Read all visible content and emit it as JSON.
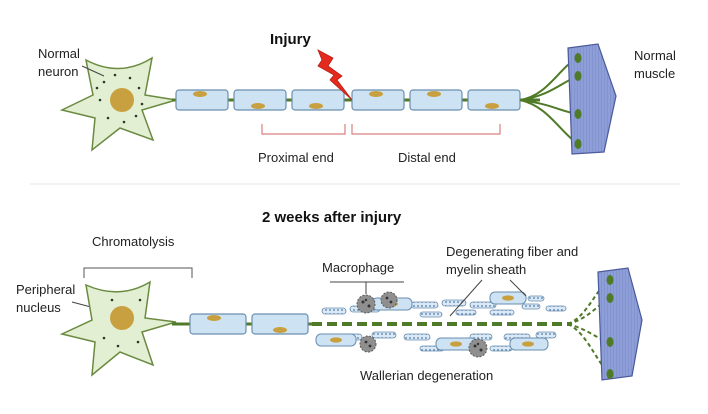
{
  "diagram": {
    "top_panel": {
      "labels": {
        "neuron_line1": "Normal",
        "neuron_line2": "neuron",
        "injury": "Injury",
        "proximal": "Proximal end",
        "distal": "Distal end",
        "muscle_line1": "Normal",
        "muscle_line2": "muscle"
      }
    },
    "bottom_panel": {
      "labels": {
        "title": "2  weeks after injury",
        "chromatolysis": "Chromatolysis",
        "peripheral_line1": "Peripheral",
        "peripheral_line2": "nucleus",
        "macrophage": "Macrophage",
        "degenerating_line1": "Degenerating fiber and",
        "degenerating_line2": "myelin sheath",
        "wallerian": "Wallerian degeneration"
      }
    },
    "colors": {
      "cell_fill": "#e3efd3",
      "cell_stroke": "#6a8a40",
      "nucleus": "#c8a040",
      "axon": "#4f7a28",
      "schwann_fill": "#cde2f2",
      "schwann_stroke": "#6a8fb0",
      "muscle_fill": "#8e9ed8",
      "injury_bolt": "#e42a1e",
      "bracket": "#d98080",
      "macrophage": "#8f8f8f"
    }
  }
}
